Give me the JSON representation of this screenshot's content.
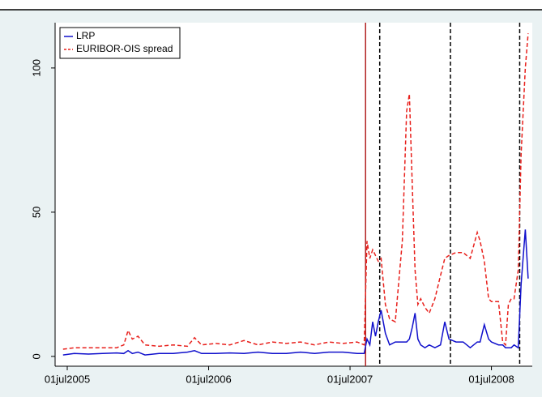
{
  "chart_data": {
    "type": "line",
    "x": [
      2005.47,
      2005.55,
      2005.65,
      2005.75,
      2005.85,
      2005.9,
      2005.93,
      2005.96,
      2006.0,
      2006.05,
      2006.15,
      2006.25,
      2006.35,
      2006.4,
      2006.45,
      2006.55,
      2006.65,
      2006.75,
      2006.85,
      2006.95,
      2007.05,
      2007.15,
      2007.25,
      2007.35,
      2007.45,
      2007.55,
      2007.6,
      2007.62,
      2007.64,
      2007.66,
      2007.68,
      2007.7,
      2007.72,
      2007.75,
      2007.78,
      2007.82,
      2007.87,
      2007.9,
      2007.92,
      2007.94,
      2007.96,
      2007.98,
      2008.0,
      2008.03,
      2008.06,
      2008.1,
      2008.14,
      2008.17,
      2008.2,
      2008.25,
      2008.3,
      2008.35,
      2008.4,
      2008.42,
      2008.45,
      2008.48,
      2008.5,
      2008.55,
      2008.58,
      2008.6,
      2008.62,
      2008.64,
      2008.66,
      2008.69,
      2008.71,
      2008.74,
      2008.76
    ],
    "series": [
      {
        "name": "LRP",
        "color": "#1010cc",
        "dash": false,
        "values": [
          0.5,
          1,
          0.8,
          1,
          1.2,
          1,
          2,
          1,
          1.5,
          0.5,
          1,
          1,
          1.5,
          2,
          1,
          1,
          1.2,
          1,
          1.5,
          1,
          1,
          1.5,
          1,
          1.5,
          1.5,
          1,
          1,
          6,
          4,
          12,
          7,
          12,
          16,
          8,
          4,
          5,
          5,
          5,
          6,
          10,
          15,
          6,
          4,
          3,
          4,
          3,
          4,
          12,
          6,
          5,
          5,
          3,
          5,
          5,
          11,
          6,
          5,
          4,
          4,
          3,
          3,
          3,
          4,
          3,
          25,
          44,
          27
        ]
      },
      {
        "name": "EURIBOR-OIS spread",
        "color": "#e8201c",
        "dash": true,
        "values": [
          2.5,
          3,
          3,
          3,
          3,
          4,
          9,
          6,
          7,
          4,
          3.5,
          4,
          3.5,
          6.5,
          4,
          4.5,
          4,
          5.5,
          4,
          5,
          4.5,
          5,
          4,
          5,
          4.5,
          5,
          4,
          40,
          34,
          37,
          35,
          33,
          34,
          18,
          13,
          12,
          40,
          85,
          91,
          60,
          30,
          18,
          20,
          17,
          15,
          20,
          28,
          34,
          35,
          36,
          36,
          34,
          43,
          40,
          33,
          20,
          19,
          19,
          5,
          4,
          18,
          20,
          20,
          30,
          70,
          100,
          112
        ]
      }
    ],
    "xlim": [
      2005.414,
      2008.789
    ],
    "xticks": [
      {
        "value": 2005.5,
        "label": "01jul2005"
      },
      {
        "value": 2006.5,
        "label": "01jul2006"
      },
      {
        "value": 2007.5,
        "label": "01jul2007"
      },
      {
        "value": 2008.5,
        "label": "01jul2008"
      }
    ],
    "ylim": [
      -3.4,
      115.7
    ],
    "yticks": [
      0,
      50,
      100
    ],
    "vlines": [
      {
        "x": 2007.61,
        "color": "#b22222",
        "dash": false
      },
      {
        "x": 2007.71,
        "color": "#000000",
        "dash": true
      },
      {
        "x": 2008.21,
        "color": "#000000",
        "dash": true
      },
      {
        "x": 2008.7,
        "color": "#000000",
        "dash": true
      }
    ],
    "legend": "top-left"
  }
}
